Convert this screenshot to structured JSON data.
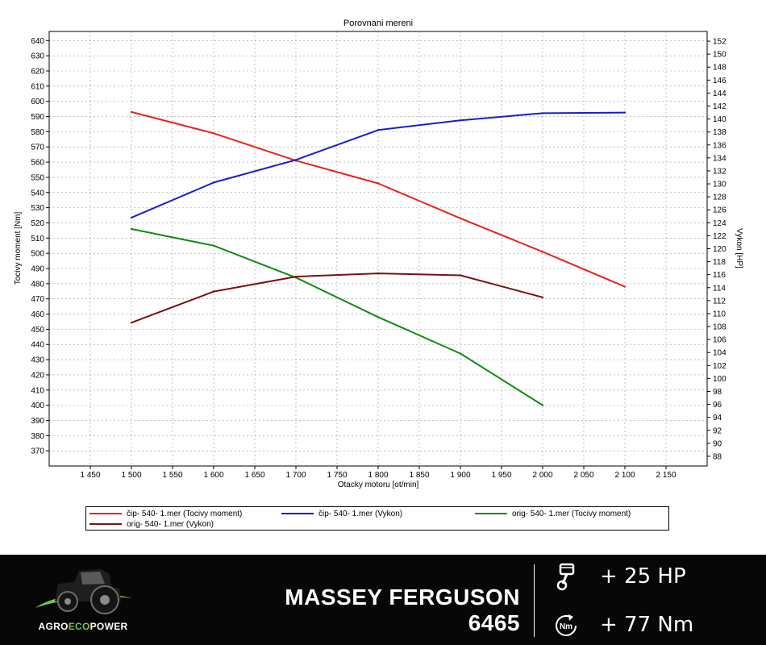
{
  "chart_data": {
    "type": "line",
    "title": "Porovnani mereni",
    "xlabel": "Otacky motoru [ot/min]",
    "ylabel": "Tocivy moment [Nm]",
    "y2label": "Vykon [HP]",
    "xlim": [
      1400,
      2200
    ],
    "ylim": [
      360,
      646
    ],
    "y2lim": [
      86.5,
      153.5
    ],
    "x_ticks": [
      1450,
      1500,
      1550,
      1600,
      1650,
      1700,
      1750,
      1800,
      1850,
      1900,
      1950,
      2000,
      2050,
      2100,
      2150
    ],
    "x_tick_labels": [
      "1 450",
      "1 500",
      "1 550",
      "1 600",
      "1 650",
      "1 700",
      "1 750",
      "1 800",
      "1 850",
      "1 900",
      "1 950",
      "2 000",
      "2 050",
      "2 100",
      "2 150"
    ],
    "y_ticks": [
      370,
      380,
      390,
      400,
      410,
      420,
      430,
      440,
      450,
      460,
      470,
      480,
      490,
      500,
      510,
      520,
      530,
      540,
      550,
      560,
      570,
      580,
      590,
      600,
      610,
      620,
      630,
      640
    ],
    "y2_ticks": [
      88,
      90,
      92,
      94,
      96,
      98,
      100,
      102,
      104,
      106,
      108,
      110,
      112,
      114,
      116,
      118,
      120,
      122,
      124,
      126,
      128,
      130,
      132,
      134,
      136,
      138,
      140,
      142,
      144,
      146,
      148,
      150,
      152
    ],
    "grid": true,
    "legend_position": "bottom",
    "series": [
      {
        "name": "čip- 540- 1.mer  (Tocivy moment)",
        "axis": "left",
        "color": "#e8231f",
        "x": [
          1500,
          1600,
          1700,
          1800,
          1900,
          2000,
          2100
        ],
        "values": [
          593,
          579,
          561,
          546,
          523,
          501,
          478
        ]
      },
      {
        "name": "čip- 540- 1.mer  (Vykon)",
        "axis": "right",
        "color": "#1c1ccc",
        "x": [
          1500,
          1600,
          1700,
          1800,
          1900,
          2000,
          2100
        ],
        "values": [
          124.8,
          130.2,
          133.7,
          138.3,
          139.8,
          140.9,
          141.0
        ]
      },
      {
        "name": "orig- 540- 1.mer  (Tocivy moment)",
        "axis": "left",
        "color": "#138a13",
        "x": [
          1500,
          1600,
          1700,
          1800,
          1900,
          2000
        ],
        "values": [
          516,
          505,
          484,
          458,
          434,
          400
        ]
      },
      {
        "name": "orig- 540- 1.mer  (Vykon)",
        "axis": "right",
        "color": "#7a1010",
        "x": [
          1500,
          1600,
          1700,
          1800,
          1900,
          2000
        ],
        "values": [
          108.6,
          113.4,
          115.7,
          116.2,
          115.9,
          112.5
        ]
      }
    ]
  },
  "banner": {
    "logo_text_parts": [
      "AGRO",
      "ECO",
      "POWER"
    ],
    "model": "MASSEY FERGUSON 6465",
    "power_gain": "+ 25 HP",
    "torque_gain": "+ 77 Nm",
    "torque_icon_label": "Nm",
    "colors": {
      "background": "#070707",
      "logo_green": "#7cc242",
      "text": "#ffffff"
    }
  }
}
